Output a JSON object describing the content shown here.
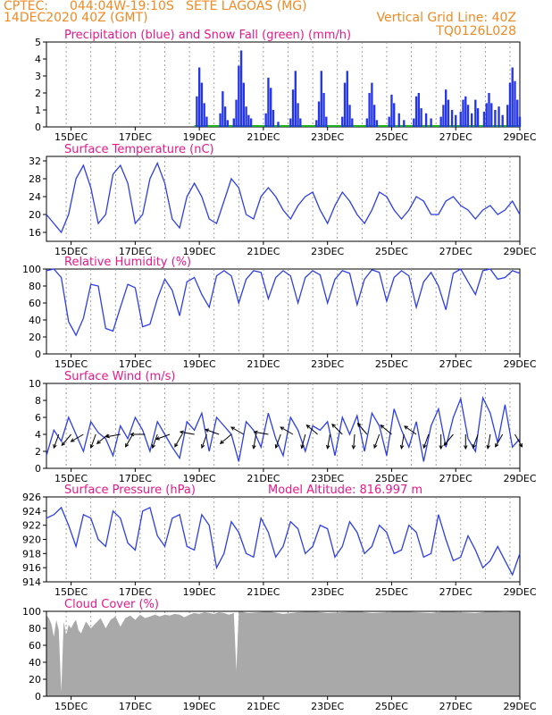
{
  "header": {
    "source": "CPTEC:",
    "location": "044:04W-19:10S   SETE LAGOAS (MG)",
    "run": "14DEC2020 40Z (GMT)",
    "grid_note": "Vertical Grid Line: 40Z",
    "code": "TQ0126L028"
  },
  "model_altitude": "Model Altitude: 816.997 m",
  "colors": {
    "line": "#2c3ee8",
    "precip": "#2436e8",
    "snow": "#1db01d",
    "cloud": "#a9a9a9",
    "title": "#e8188a",
    "header": "#f08a24",
    "grid": "#8c8c8c"
  },
  "date_labels": [
    "15DEC",
    "17DEC",
    "19DEC",
    "21DEC",
    "23DEC",
    "25DEC",
    "27DEC",
    "29DEC"
  ],
  "chart_data": [
    {
      "type": "bar",
      "title": "Precipitation (blue) and Snow Fall (green) (mm/h)",
      "ylim": [
        0,
        5
      ],
      "yticks": [
        0,
        1,
        2,
        3,
        4,
        5
      ],
      "series": [
        {
          "name": "Precipitation",
          "points": [
            [
              6.1,
              1.8
            ],
            [
              6.2,
              3.5
            ],
            [
              6.3,
              2.6
            ],
            [
              6.4,
              1.4
            ],
            [
              6.5,
              0.6
            ],
            [
              7.05,
              0.8
            ],
            [
              7.15,
              2.1
            ],
            [
              7.25,
              1.2
            ],
            [
              7.35,
              0.4
            ],
            [
              7.6,
              0.5
            ],
            [
              7.7,
              1.6
            ],
            [
              7.8,
              3.6
            ],
            [
              7.9,
              4.5
            ],
            [
              8.0,
              2.6
            ],
            [
              8.1,
              1.2
            ],
            [
              8.2,
              0.7
            ],
            [
              8.3,
              0.5
            ],
            [
              8.9,
              0.8
            ],
            [
              9.0,
              2.9
            ],
            [
              9.1,
              2.3
            ],
            [
              9.2,
              1.0
            ],
            [
              9.4,
              0.3
            ],
            [
              9.9,
              0.5
            ],
            [
              10.0,
              2.2
            ],
            [
              10.1,
              3.3
            ],
            [
              10.2,
              1.4
            ],
            [
              10.3,
              0.5
            ],
            [
              10.95,
              0.4
            ],
            [
              11.05,
              1.5
            ],
            [
              11.15,
              3.3
            ],
            [
              11.25,
              2.0
            ],
            [
              11.35,
              0.6
            ],
            [
              12.0,
              0.6
            ],
            [
              12.1,
              2.6
            ],
            [
              12.2,
              3.3
            ],
            [
              12.3,
              1.3
            ],
            [
              12.4,
              0.5
            ],
            [
              13.0,
              0.5
            ],
            [
              13.1,
              2.0
            ],
            [
              13.2,
              2.6
            ],
            [
              13.3,
              1.3
            ],
            [
              13.4,
              0.4
            ],
            [
              13.9,
              0.6
            ],
            [
              14.0,
              1.9
            ],
            [
              14.1,
              1.4
            ],
            [
              14.3,
              0.8
            ],
            [
              14.5,
              0.4
            ],
            [
              14.9,
              0.5
            ],
            [
              15.0,
              1.8
            ],
            [
              15.1,
              2.0
            ],
            [
              15.2,
              1.1
            ],
            [
              15.4,
              0.8
            ],
            [
              15.6,
              0.5
            ],
            [
              16.0,
              0.6
            ],
            [
              16.1,
              1.3
            ],
            [
              16.2,
              2.2
            ],
            [
              16.3,
              1.6
            ],
            [
              16.45,
              1.0
            ],
            [
              16.6,
              0.7
            ],
            [
              16.8,
              0.9
            ],
            [
              16.9,
              1.6
            ],
            [
              17.0,
              1.8
            ],
            [
              17.1,
              1.3
            ],
            [
              17.25,
              0.8
            ],
            [
              17.4,
              1.6
            ],
            [
              17.5,
              1.1
            ],
            [
              17.75,
              0.9
            ],
            [
              17.85,
              1.4
            ],
            [
              17.95,
              2.0
            ],
            [
              18.05,
              1.4
            ],
            [
              18.2,
              1.0
            ],
            [
              18.35,
              1.2
            ],
            [
              18.5,
              0.7
            ],
            [
              18.7,
              1.3
            ],
            [
              18.8,
              2.6
            ],
            [
              18.9,
              3.5
            ],
            [
              19.0,
              2.7
            ],
            [
              19.1,
              1.6
            ],
            [
              19.2,
              0.6
            ]
          ]
        },
        {
          "name": "Snow Fall",
          "points": []
        }
      ]
    },
    {
      "type": "line",
      "title": "Surface Temperature (nC)",
      "ylim": [
        14,
        33
      ],
      "yticks": [
        16,
        20,
        24,
        28,
        32
      ],
      "x": [
        0,
        0.3,
        0.6,
        0.9,
        1.2,
        1.5,
        1.8,
        2.1,
        2.4,
        2.7,
        3.0,
        3.3,
        3.6,
        3.9,
        4.2,
        4.5,
        4.8,
        5.1,
        5.4,
        5.7,
        6.0,
        6.3,
        6.6,
        6.9,
        7.2,
        7.5,
        7.8,
        8.1,
        8.4,
        8.7,
        9.0,
        9.3,
        9.6,
        9.9,
        10.2,
        10.5,
        10.8,
        11.1,
        11.4,
        11.7,
        12.0,
        12.3,
        12.6,
        12.9,
        13.2,
        13.5,
        13.8,
        14.1,
        14.4,
        14.7,
        15.0,
        15.3,
        15.6,
        15.9,
        16.2,
        16.5,
        16.8,
        17.1,
        17.4,
        17.7,
        18.0,
        18.3,
        18.6,
        18.9,
        19.2
      ],
      "values": [
        20,
        18,
        16,
        20,
        28,
        31,
        26,
        18,
        20,
        29,
        31,
        27,
        18,
        20,
        28,
        31.5,
        27,
        19,
        17,
        24,
        27,
        24,
        19,
        18,
        23,
        28,
        26,
        20,
        19,
        24,
        26,
        24,
        21,
        19,
        22,
        24,
        25,
        21,
        18,
        22,
        25,
        23,
        20,
        18,
        21,
        25,
        24,
        21,
        19,
        21,
        24,
        23,
        20,
        20,
        23,
        24,
        22,
        21,
        19,
        21,
        22,
        20,
        21,
        23,
        20
      ]
    },
    {
      "type": "line",
      "title": "Relative Humidity (%)",
      "ylim": [
        0,
        100
      ],
      "yticks": [
        0,
        20,
        40,
        60,
        80,
        100
      ],
      "x": [
        0,
        0.3,
        0.6,
        0.9,
        1.2,
        1.5,
        1.8,
        2.1,
        2.4,
        2.7,
        3.0,
        3.3,
        3.6,
        3.9,
        4.2,
        4.5,
        4.8,
        5.1,
        5.4,
        5.7,
        6.0,
        6.3,
        6.6,
        6.9,
        7.2,
        7.5,
        7.8,
        8.1,
        8.4,
        8.7,
        9.0,
        9.3,
        9.6,
        9.9,
        10.2,
        10.5,
        10.8,
        11.1,
        11.4,
        11.7,
        12.0,
        12.3,
        12.6,
        12.9,
        13.2,
        13.5,
        13.8,
        14.1,
        14.4,
        14.7,
        15.0,
        15.3,
        15.6,
        15.9,
        16.2,
        16.5,
        16.8,
        17.1,
        17.4,
        17.7,
        18.0,
        18.3,
        18.6,
        18.9,
        19.2
      ],
      "values": [
        98,
        100,
        90,
        38,
        22,
        42,
        82,
        80,
        30,
        27,
        55,
        82,
        78,
        32,
        35,
        65,
        88,
        75,
        45,
        85,
        90,
        70,
        55,
        92,
        98,
        92,
        60,
        88,
        98,
        96,
        65,
        90,
        98,
        92,
        60,
        90,
        98,
        93,
        60,
        88,
        98,
        95,
        58,
        88,
        99,
        96,
        62,
        90,
        98,
        92,
        55,
        85,
        96,
        80,
        52,
        95,
        100,
        85,
        70,
        98,
        100,
        88,
        90,
        98,
        95
      ]
    },
    {
      "type": "line",
      "title": "Surface Wind (m/s)",
      "ylim": [
        0,
        10
      ],
      "yticks": [
        0,
        2,
        4,
        6,
        8,
        10
      ],
      "x": [
        0,
        0.3,
        0.6,
        0.9,
        1.2,
        1.5,
        1.8,
        2.1,
        2.4,
        2.7,
        3.0,
        3.3,
        3.6,
        3.9,
        4.2,
        4.5,
        4.8,
        5.1,
        5.4,
        5.7,
        6.0,
        6.3,
        6.6,
        6.9,
        7.2,
        7.5,
        7.8,
        8.1,
        8.4,
        8.7,
        9.0,
        9.3,
        9.6,
        9.9,
        10.2,
        10.5,
        10.8,
        11.1,
        11.4,
        11.7,
        12.0,
        12.3,
        12.6,
        12.9,
        13.2,
        13.5,
        13.8,
        14.1,
        14.4,
        14.7,
        15.0,
        15.3,
        15.6,
        15.9,
        16.2,
        16.5,
        16.8,
        17.1,
        17.4,
        17.7,
        18.0,
        18.3,
        18.6,
        18.9,
        19.2
      ],
      "values": [
        1.5,
        4.5,
        3.2,
        6.0,
        4.0,
        2.0,
        5.5,
        4.2,
        3.5,
        1.5,
        5.0,
        3.5,
        6.0,
        4.5,
        2.0,
        5.5,
        4.0,
        2.5,
        1.2,
        5.5,
        4.5,
        6.5,
        2.0,
        6.0,
        5.0,
        4.0,
        0.8,
        5.5,
        4.5,
        2.5,
        6.5,
        3.5,
        1.5,
        6.0,
        4.5,
        2.0,
        5.0,
        4.5,
        5.5,
        1.5,
        6.0,
        4.0,
        6.2,
        2.0,
        6.5,
        5.0,
        1.5,
        7.0,
        4.5,
        2.5,
        5.5,
        0.8,
        5.0,
        7.0,
        2.5,
        6.0,
        8.2,
        3.5,
        2.0,
        8.3,
        6.5,
        3.0,
        7.5,
        2.5,
        3.5
      ],
      "arrows": [
        {
          "t": 0.5,
          "dir": 200
        },
        {
          "t": 1.0,
          "dir": 220
        },
        {
          "t": 1.5,
          "dir": 240
        },
        {
          "t": 2.0,
          "dir": 200
        },
        {
          "t": 2.5,
          "dir": 230
        },
        {
          "t": 3.0,
          "dir": 260
        },
        {
          "t": 3.5,
          "dir": 210
        },
        {
          "t": 4.0,
          "dir": 270
        },
        {
          "t": 4.5,
          "dir": 200
        },
        {
          "t": 5.0,
          "dir": 250
        },
        {
          "t": 5.5,
          "dir": 210
        },
        {
          "t": 6.0,
          "dir": 280
        },
        {
          "t": 6.5,
          "dir": 200
        },
        {
          "t": 7.0,
          "dir": 290
        },
        {
          "t": 7.5,
          "dir": 230
        },
        {
          "t": 8.0,
          "dir": 300
        },
        {
          "t": 8.5,
          "dir": 190
        },
        {
          "t": 9.0,
          "dir": 280
        },
        {
          "t": 9.5,
          "dir": 200
        },
        {
          "t": 10.0,
          "dir": 300
        },
        {
          "t": 10.5,
          "dir": 195
        },
        {
          "t": 11.0,
          "dir": 310
        },
        {
          "t": 11.5,
          "dir": 190
        },
        {
          "t": 12.0,
          "dir": 315
        },
        {
          "t": 12.5,
          "dir": 185
        },
        {
          "t": 13.0,
          "dir": 320
        },
        {
          "t": 13.5,
          "dir": 200
        },
        {
          "t": 14.0,
          "dir": 310
        },
        {
          "t": 14.5,
          "dir": 190
        },
        {
          "t": 15.0,
          "dir": 305
        },
        {
          "t": 15.5,
          "dir": 200
        },
        {
          "t": 16.0,
          "dir": 180
        },
        {
          "t": 16.5,
          "dir": 220
        },
        {
          "t": 17.0,
          "dir": 180
        },
        {
          "t": 17.5,
          "dir": 200
        },
        {
          "t": 18.0,
          "dir": 190
        },
        {
          "t": 18.5,
          "dir": 210
        },
        {
          "t": 19.0,
          "dir": 150
        }
      ]
    },
    {
      "type": "line",
      "title": "Surface Pressure (hPa)",
      "ylim": [
        914,
        926
      ],
      "yticks": [
        914,
        916,
        918,
        920,
        922,
        924,
        926
      ],
      "x": [
        0,
        0.3,
        0.6,
        0.9,
        1.2,
        1.5,
        1.8,
        2.1,
        2.4,
        2.7,
        3.0,
        3.3,
        3.6,
        3.9,
        4.2,
        4.5,
        4.8,
        5.1,
        5.4,
        5.7,
        6.0,
        6.3,
        6.6,
        6.9,
        7.2,
        7.5,
        7.8,
        8.1,
        8.4,
        8.7,
        9.0,
        9.3,
        9.6,
        9.9,
        10.2,
        10.5,
        10.8,
        11.1,
        11.4,
        11.7,
        12.0,
        12.3,
        12.6,
        12.9,
        13.2,
        13.5,
        13.8,
        14.1,
        14.4,
        14.7,
        15.0,
        15.3,
        15.6,
        15.9,
        16.2,
        16.5,
        16.8,
        17.1,
        17.4,
        17.7,
        18.0,
        18.3,
        18.6,
        18.9,
        19.2
      ],
      "values": [
        923,
        923.5,
        924.5,
        922,
        919,
        923.5,
        923,
        920,
        919,
        924,
        923,
        919.5,
        918.5,
        924,
        924.5,
        920.5,
        919,
        923,
        923.5,
        919,
        918.5,
        923.5,
        922,
        916,
        918,
        922.5,
        921,
        918,
        917.5,
        923,
        921,
        917.5,
        919,
        922.5,
        921.5,
        918,
        919,
        922,
        921.5,
        917.5,
        919,
        922.5,
        921,
        918,
        919,
        922,
        921,
        918,
        918.5,
        922,
        921,
        917.5,
        918,
        923.5,
        920,
        917,
        917.5,
        920.5,
        918.5,
        916,
        917,
        919,
        917,
        915,
        918
      ]
    },
    {
      "type": "area",
      "title": "Cloud Cover (%)",
      "ylim": [
        0,
        100
      ],
      "yticks": [
        0,
        20,
        40,
        60,
        80,
        100
      ],
      "x": [
        0,
        0.1,
        0.2,
        0.3,
        0.4,
        0.5,
        0.6,
        0.7,
        0.8,
        0.9,
        1.0,
        1.1,
        1.2,
        1.3,
        1.4,
        1.6,
        1.8,
        2.0,
        2.2,
        2.4,
        2.6,
        2.8,
        3.0,
        3.2,
        3.4,
        3.6,
        3.8,
        4.0,
        4.2,
        4.4,
        4.6,
        4.8,
        5.0,
        5.2,
        5.4,
        5.6,
        5.8,
        6.0,
        6.2,
        6.4,
        6.6,
        6.8,
        7.0,
        7.2,
        7.4,
        7.6,
        7.7,
        7.8,
        7.9,
        8.0,
        8.2,
        8.6,
        9.0,
        9.6,
        10.2,
        10.8,
        11.4,
        12.0,
        12.6,
        13.2,
        13.8,
        14.4,
        15.0,
        15.6,
        16.2,
        16.8,
        17.4,
        18.0,
        18.6,
        19.2
      ],
      "values": [
        95,
        92,
        85,
        70,
        90,
        78,
        5,
        88,
        72,
        84,
        80,
        86,
        90,
        78,
        74,
        88,
        80,
        86,
        92,
        80,
        90,
        94,
        82,
        92,
        95,
        90,
        96,
        92,
        94,
        96,
        94,
        96,
        95,
        97,
        96,
        93,
        96,
        98,
        97,
        99,
        98,
        97,
        99,
        98,
        96,
        98,
        30,
        99,
        100,
        99,
        98,
        99,
        100,
        97,
        99,
        100,
        98,
        99,
        100,
        98,
        99,
        100,
        99,
        98,
        100,
        99,
        98,
        100,
        99,
        100
      ]
    }
  ]
}
